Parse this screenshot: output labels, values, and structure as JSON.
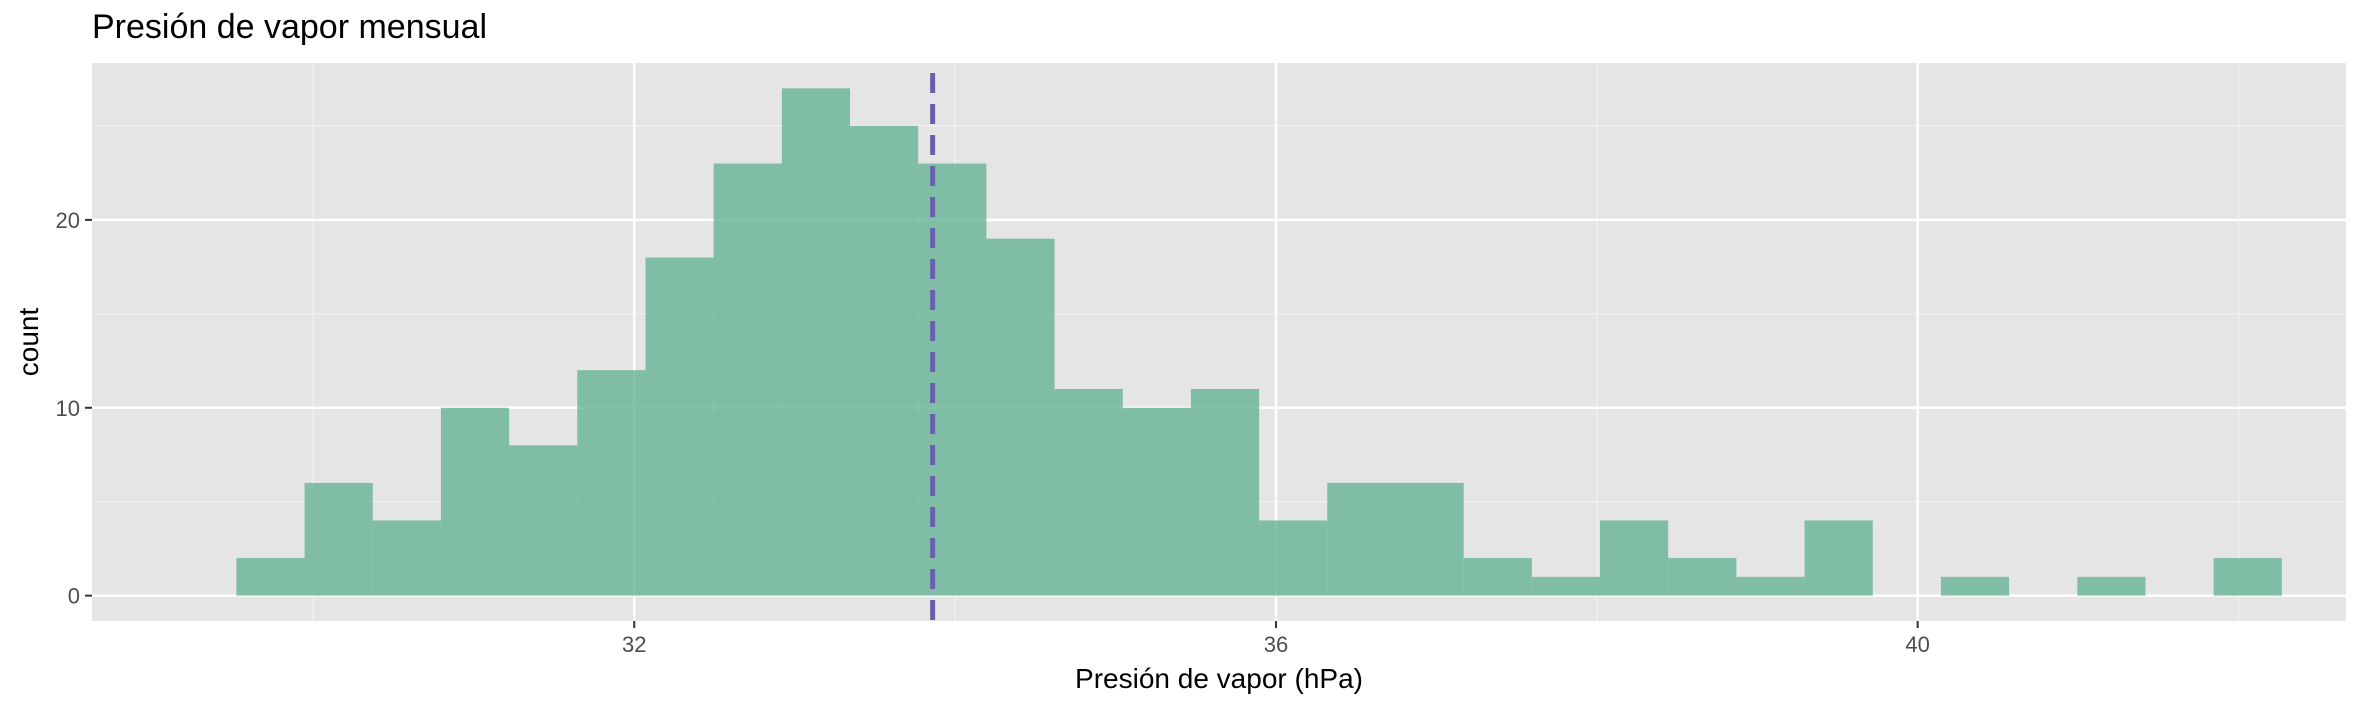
{
  "chart_data": {
    "type": "bar",
    "subtype": "histogram",
    "title": "Presión de vapor mensual",
    "xlabel": "Presión de vapor (hPa)",
    "ylabel": "count",
    "xlim": [
      28.62,
      42.67
    ],
    "ylim": [
      -1.35,
      28.35
    ],
    "x_ticks": [
      32,
      36,
      40
    ],
    "x_minor_ticks": [
      30,
      34,
      38,
      42
    ],
    "y_ticks": [
      0,
      10,
      20
    ],
    "y_minor_ticks": [
      5,
      15,
      25
    ],
    "grid": true,
    "bin_width": 0.425,
    "bins": [
      {
        "start": 29.52,
        "count": 2
      },
      {
        "start": 29.945,
        "count": 6
      },
      {
        "start": 30.37,
        "count": 4
      },
      {
        "start": 30.795,
        "count": 10
      },
      {
        "start": 31.22,
        "count": 8
      },
      {
        "start": 31.645,
        "count": 12
      },
      {
        "start": 32.07,
        "count": 18
      },
      {
        "start": 32.495,
        "count": 23
      },
      {
        "start": 32.92,
        "count": 27
      },
      {
        "start": 33.345,
        "count": 25
      },
      {
        "start": 33.77,
        "count": 23
      },
      {
        "start": 34.195,
        "count": 19
      },
      {
        "start": 34.62,
        "count": 11
      },
      {
        "start": 35.045,
        "count": 10
      },
      {
        "start": 35.47,
        "count": 11
      },
      {
        "start": 35.895,
        "count": 4
      },
      {
        "start": 36.32,
        "count": 6
      },
      {
        "start": 36.745,
        "count": 6
      },
      {
        "start": 37.17,
        "count": 2
      },
      {
        "start": 37.595,
        "count": 1
      },
      {
        "start": 38.02,
        "count": 4
      },
      {
        "start": 38.445,
        "count": 2
      },
      {
        "start": 38.87,
        "count": 1
      },
      {
        "start": 39.295,
        "count": 4
      },
      {
        "start": 39.72,
        "count": 0
      },
      {
        "start": 40.145,
        "count": 1
      },
      {
        "start": 40.57,
        "count": 0
      },
      {
        "start": 40.995,
        "count": 1
      },
      {
        "start": 41.42,
        "count": 0
      },
      {
        "start": 41.845,
        "count": 2
      }
    ],
    "reference_line": {
      "x": 33.86,
      "style": "dashed"
    },
    "colors": {
      "bar_fill": "#66b395",
      "bar_opacity": 0.8,
      "reference_line": "#6a5fad",
      "panel_background": "#e5e5e5",
      "grid_major": "#ffffff",
      "grid_minor": "#f2f2f2"
    }
  }
}
